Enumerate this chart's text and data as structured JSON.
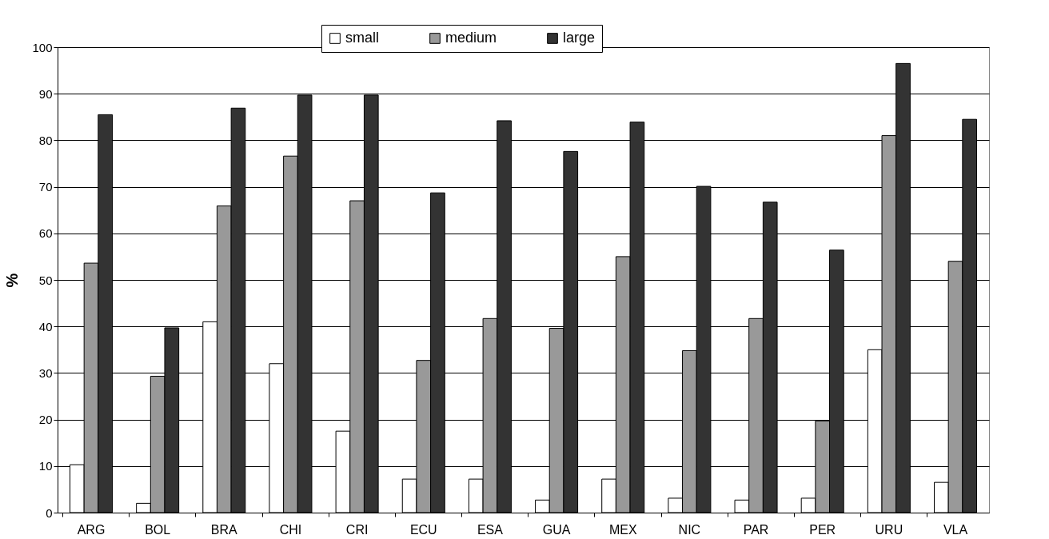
{
  "chart_data": {
    "type": "bar",
    "ylabel": "%",
    "categories": [
      "ARG",
      "BOL",
      "BRA",
      "CHI",
      "CRI",
      "ECU",
      "ESA",
      "GUA",
      "MEX",
      "NIC",
      "PAR",
      "PER",
      "URU",
      "VLA"
    ],
    "series": [
      {
        "name": "small",
        "color": "#ffffff",
        "values": [
          10.3,
          2,
          41,
          32,
          17.5,
          7.2,
          7.2,
          2.7,
          7.2,
          3.1,
          2.7,
          3.1,
          35,
          6.5
        ]
      },
      {
        "name": "medium",
        "color": "#999999",
        "values": [
          53.6,
          29.3,
          65.9,
          76.6,
          67,
          32.7,
          41.7,
          39.6,
          55,
          34.8,
          41.7,
          19.7,
          81,
          54
        ]
      },
      {
        "name": "large",
        "color": "#333333",
        "values": [
          85.5,
          39.7,
          86.9,
          89.7,
          89.7,
          68.7,
          84.2,
          77.6,
          83.9,
          70.1,
          66.7,
          56.4,
          96.5,
          84.5
        ]
      }
    ],
    "ylim": [
      0,
      100
    ],
    "yticks": [
      0,
      10,
      20,
      30,
      40,
      50,
      60,
      70,
      80,
      90,
      100
    ],
    "grid": "y",
    "legend": "top"
  }
}
